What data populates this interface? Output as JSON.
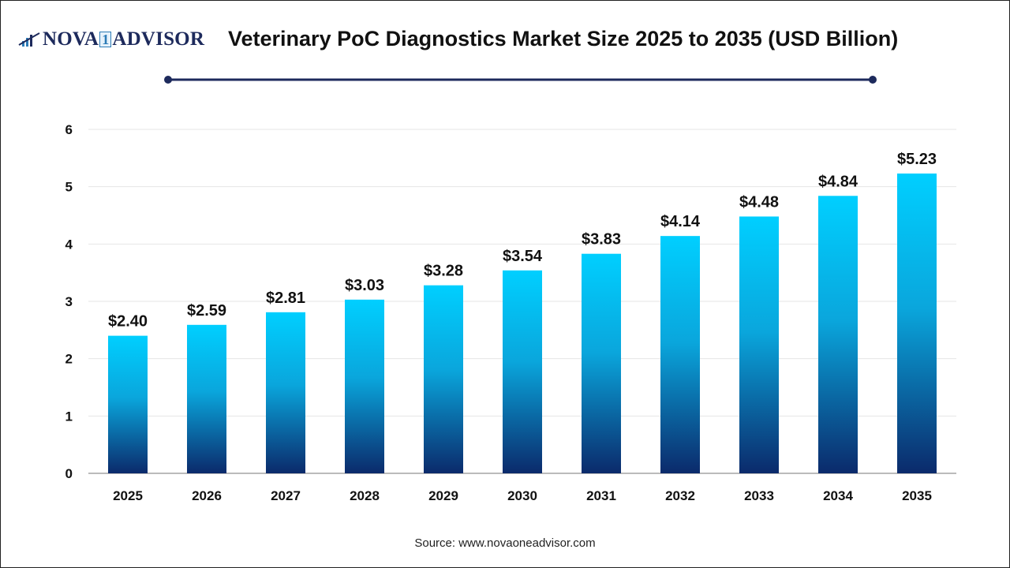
{
  "logo": {
    "text_left": "NOVA",
    "text_one": "1",
    "text_right": "ADVISOR"
  },
  "title": "Veterinary PoC Diagnostics Market Size 2025 to 2035 (USD Billion)",
  "source": "Source: www.novaoneadvisor.com",
  "colors": {
    "bar_top": "#00cfff",
    "bar_bottom": "#0b2a6b",
    "accent_line": "#1d2a5c"
  },
  "chart_data": {
    "type": "bar",
    "title": "Veterinary PoC Diagnostics Market Size 2025 to 2035 (USD Billion)",
    "xlabel": "",
    "ylabel": "",
    "categories": [
      "2025",
      "2026",
      "2027",
      "2028",
      "2029",
      "2030",
      "2031",
      "2032",
      "2033",
      "2034",
      "2035"
    ],
    "values": [
      2.4,
      2.59,
      2.81,
      3.03,
      3.28,
      3.54,
      3.83,
      4.14,
      4.48,
      4.84,
      5.23
    ],
    "data_labels": [
      "$2.40",
      "$2.59",
      "$2.81",
      "$3.03",
      "$3.28",
      "$3.54",
      "$3.83",
      "$4.14",
      "$4.48",
      "$4.84",
      "$5.23"
    ],
    "ylim": [
      0,
      6
    ],
    "yticks": [
      "0",
      "1",
      "2",
      "3",
      "4",
      "5",
      "6"
    ],
    "grid": true,
    "legend": "none"
  }
}
